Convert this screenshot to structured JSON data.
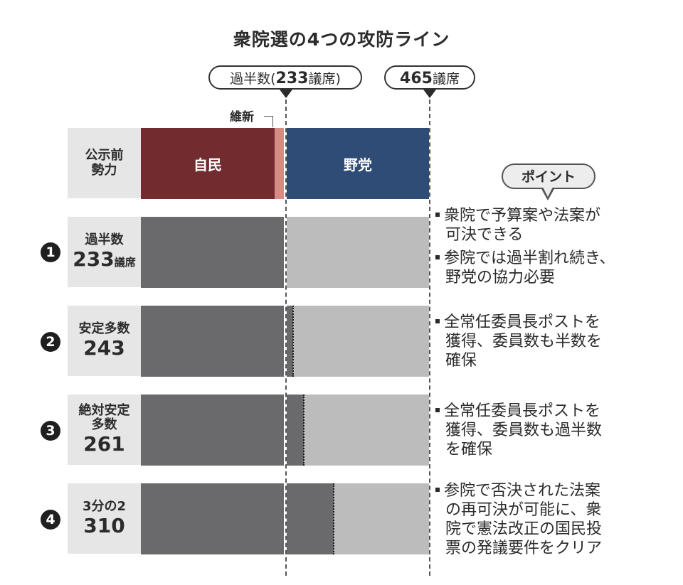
{
  "title": "衆院選の4つの攻防ライン",
  "markers": {
    "majority": {
      "prefix": "過半数(",
      "value": "233",
      "suffix": "議席)"
    },
    "total": {
      "value": "465",
      "suffix": "議席"
    }
  },
  "chart_data": {
    "type": "bar",
    "orientation": "horizontal",
    "total_seats": 465,
    "majority_line": 233,
    "current_strength": {
      "label": "公示前 勢力",
      "segments": [
        {
          "name": "自民",
          "label": "自民",
          "seats": 218,
          "color": "#722c2f"
        },
        {
          "name": "維新",
          "label": "維新",
          "seats": 15,
          "color": "#d88a84"
        },
        {
          "name": "野党",
          "label": "野党",
          "seats": 232,
          "color": "#2f4c77"
        }
      ]
    },
    "thresholds": [
      {
        "num": "1",
        "name": "過半数",
        "seats": 233,
        "unit": "議席"
      },
      {
        "num": "2",
        "name": "安定多数",
        "seats": 243
      },
      {
        "num": "3",
        "name": "絶対安定多数",
        "seats": 261
      },
      {
        "num": "4",
        "name": "3分の2",
        "seats": 310
      }
    ],
    "colors": {
      "ruling": "#6a6a6c",
      "rest": "#bcbcbc"
    }
  },
  "labels": {
    "ishin": "維新",
    "current_line1": "公示前",
    "current_line2": "勢力",
    "t1_name": "過半数",
    "t1_num": "233",
    "t1_unit": "議席",
    "t2_name": "安定多数",
    "t2_num": "243",
    "t3_name1": "絶対安定",
    "t3_name2": "多数",
    "t3_num": "261",
    "t4_name": "3分の2",
    "t4_num": "310"
  },
  "points": {
    "header": "ポイント",
    "notes": [
      [
        "衆院で予算案や法案が",
        "可決できる"
      ],
      [
        "参院では過半割れ続き、",
        "野党の協力必要"
      ],
      [
        "全常任委員長ポストを",
        "獲得、委員数も半数を",
        "確保"
      ],
      [
        "全常任委員長ポストを",
        "獲得、委員数も過半数",
        "を確保"
      ],
      [
        "参院で否決された法案",
        "の再可決が可能に、衆",
        "院で憲法改正の国民投",
        "票の発議要件をクリア"
      ]
    ]
  }
}
